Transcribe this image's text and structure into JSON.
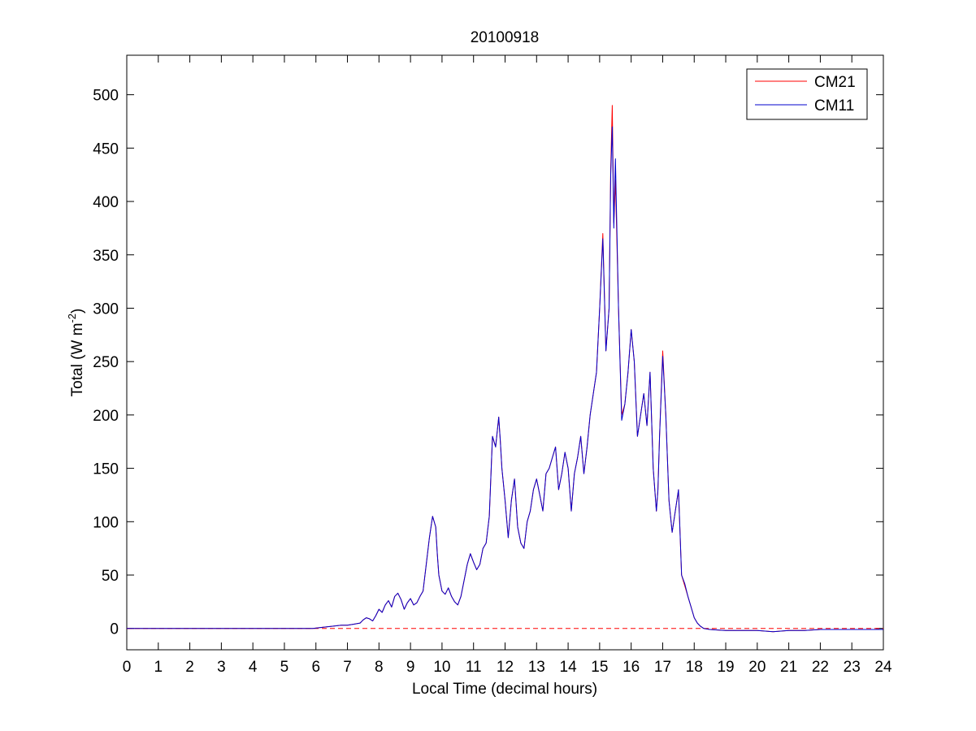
{
  "chart_data": {
    "type": "line",
    "title": "20100918",
    "xlabel": "Local Time (decimal hours)",
    "ylabel_prefix": "Total (W m",
    "ylabel_sup": "-2",
    "ylabel_suffix": ")",
    "xlim": [
      0,
      24
    ],
    "ylim": [
      -20,
      537
    ],
    "xticks": [
      0,
      1,
      2,
      3,
      4,
      5,
      6,
      7,
      8,
      9,
      10,
      11,
      12,
      13,
      14,
      15,
      16,
      17,
      18,
      19,
      20,
      21,
      22,
      23,
      24
    ],
    "yticks": [
      0,
      50,
      100,
      150,
      200,
      250,
      300,
      350,
      400,
      450,
      500
    ],
    "grid": false,
    "legend_position": "top-right",
    "reference_line": {
      "y": 0,
      "style": "dashed",
      "color": "#ff0000"
    },
    "series": [
      {
        "name": "CM21",
        "color": "#ff0000",
        "x": [
          0,
          1,
          2,
          3,
          4,
          5,
          5.9,
          6.2,
          6.5,
          6.8,
          7.0,
          7.2,
          7.4,
          7.5,
          7.6,
          7.7,
          7.8,
          7.9,
          8.0,
          8.1,
          8.2,
          8.3,
          8.4,
          8.5,
          8.6,
          8.7,
          8.8,
          8.9,
          9.0,
          9.1,
          9.2,
          9.3,
          9.4,
          9.5,
          9.6,
          9.7,
          9.8,
          9.85,
          9.9,
          10.0,
          10.1,
          10.2,
          10.3,
          10.4,
          10.5,
          10.6,
          10.7,
          10.8,
          10.9,
          11.0,
          11.1,
          11.2,
          11.3,
          11.4,
          11.5,
          11.6,
          11.7,
          11.8,
          11.85,
          11.9,
          12.0,
          12.1,
          12.2,
          12.3,
          12.4,
          12.5,
          12.6,
          12.7,
          12.8,
          12.9,
          13.0,
          13.1,
          13.2,
          13.3,
          13.4,
          13.5,
          13.6,
          13.7,
          13.8,
          13.9,
          14.0,
          14.1,
          14.2,
          14.3,
          14.4,
          14.5,
          14.6,
          14.7,
          14.8,
          14.9,
          15.0,
          15.1,
          15.2,
          15.3,
          15.35,
          15.4,
          15.45,
          15.5,
          15.6,
          15.7,
          15.8,
          15.9,
          16.0,
          16.1,
          16.2,
          16.3,
          16.4,
          16.5,
          16.6,
          16.7,
          16.8,
          16.85,
          16.9,
          17.0,
          17.1,
          17.2,
          17.3,
          17.4,
          17.5,
          17.6,
          17.7,
          17.8,
          17.9,
          18.0,
          18.1,
          18.2,
          18.3,
          18.5,
          19.0,
          19.5,
          20.0,
          20.5,
          21.0,
          21.5,
          22.0,
          22.5,
          23.0,
          23.5,
          24.0
        ],
        "y": [
          0,
          0,
          0,
          0,
          0,
          0,
          0,
          1,
          2,
          3,
          3,
          4,
          5,
          8,
          10,
          9,
          7,
          12,
          18,
          15,
          22,
          26,
          20,
          30,
          33,
          27,
          18,
          24,
          28,
          22,
          24,
          30,
          35,
          60,
          85,
          105,
          95,
          70,
          50,
          35,
          32,
          38,
          30,
          25,
          22,
          30,
          45,
          60,
          70,
          62,
          55,
          60,
          75,
          80,
          105,
          180,
          170,
          198,
          175,
          150,
          120,
          85,
          120,
          140,
          95,
          80,
          75,
          100,
          110,
          130,
          140,
          125,
          110,
          145,
          150,
          160,
          170,
          130,
          145,
          165,
          150,
          110,
          145,
          160,
          180,
          145,
          170,
          200,
          220,
          240,
          300,
          370,
          260,
          300,
          430,
          490,
          380,
          420,
          300,
          200,
          210,
          240,
          280,
          250,
          180,
          200,
          220,
          190,
          240,
          150,
          110,
          130,
          180,
          260,
          200,
          120,
          90,
          110,
          130,
          50,
          40,
          30,
          20,
          10,
          5,
          2,
          0,
          -1,
          -2,
          -2,
          -2,
          -3,
          -2,
          -2,
          -1,
          -1,
          -1,
          -1,
          -1
        ]
      },
      {
        "name": "CM11",
        "color": "#0000cc",
        "x": [
          0,
          1,
          2,
          3,
          4,
          5,
          5.9,
          6.2,
          6.5,
          6.8,
          7.0,
          7.2,
          7.4,
          7.5,
          7.6,
          7.7,
          7.8,
          7.9,
          8.0,
          8.1,
          8.2,
          8.3,
          8.4,
          8.5,
          8.6,
          8.7,
          8.8,
          8.9,
          9.0,
          9.1,
          9.2,
          9.3,
          9.4,
          9.5,
          9.6,
          9.7,
          9.8,
          9.85,
          9.9,
          10.0,
          10.1,
          10.2,
          10.3,
          10.4,
          10.5,
          10.6,
          10.7,
          10.8,
          10.9,
          11.0,
          11.1,
          11.2,
          11.3,
          11.4,
          11.5,
          11.6,
          11.7,
          11.8,
          11.85,
          11.9,
          12.0,
          12.1,
          12.2,
          12.3,
          12.4,
          12.5,
          12.6,
          12.7,
          12.8,
          12.9,
          13.0,
          13.1,
          13.2,
          13.3,
          13.4,
          13.5,
          13.6,
          13.7,
          13.8,
          13.9,
          14.0,
          14.1,
          14.2,
          14.3,
          14.4,
          14.5,
          14.6,
          14.7,
          14.8,
          14.9,
          15.0,
          15.1,
          15.2,
          15.3,
          15.35,
          15.4,
          15.45,
          15.5,
          15.6,
          15.7,
          15.8,
          15.9,
          16.0,
          16.1,
          16.2,
          16.3,
          16.4,
          16.5,
          16.6,
          16.7,
          16.8,
          16.85,
          16.9,
          17.0,
          17.1,
          17.2,
          17.3,
          17.4,
          17.5,
          17.6,
          17.7,
          17.8,
          17.9,
          18.0,
          18.1,
          18.2,
          18.3,
          18.5,
          19.0,
          19.5,
          20.0,
          20.5,
          21.0,
          21.5,
          22.0,
          22.5,
          23.0,
          23.5,
          24.0
        ],
        "y": [
          0,
          0,
          0,
          0,
          0,
          0,
          0,
          1,
          2,
          3,
          3,
          4,
          5,
          8,
          10,
          9,
          7,
          12,
          18,
          15,
          22,
          26,
          20,
          30,
          33,
          27,
          18,
          24,
          28,
          22,
          24,
          30,
          35,
          60,
          85,
          105,
          95,
          70,
          50,
          35,
          32,
          38,
          30,
          25,
          22,
          30,
          45,
          60,
          70,
          62,
          55,
          60,
          75,
          80,
          105,
          180,
          170,
          198,
          175,
          150,
          120,
          85,
          120,
          140,
          95,
          80,
          75,
          100,
          110,
          130,
          140,
          125,
          110,
          145,
          150,
          160,
          170,
          130,
          145,
          165,
          150,
          110,
          145,
          160,
          180,
          145,
          170,
          200,
          220,
          240,
          300,
          365,
          260,
          300,
          425,
          470,
          375,
          440,
          300,
          195,
          210,
          240,
          280,
          250,
          180,
          200,
          220,
          190,
          240,
          150,
          110,
          130,
          180,
          255,
          200,
          120,
          90,
          110,
          130,
          50,
          42,
          30,
          20,
          10,
          5,
          2,
          0,
          -1,
          -2,
          -2,
          -2,
          -3,
          -2,
          -2,
          -1,
          -1,
          -1,
          -1,
          -1
        ]
      }
    ]
  }
}
